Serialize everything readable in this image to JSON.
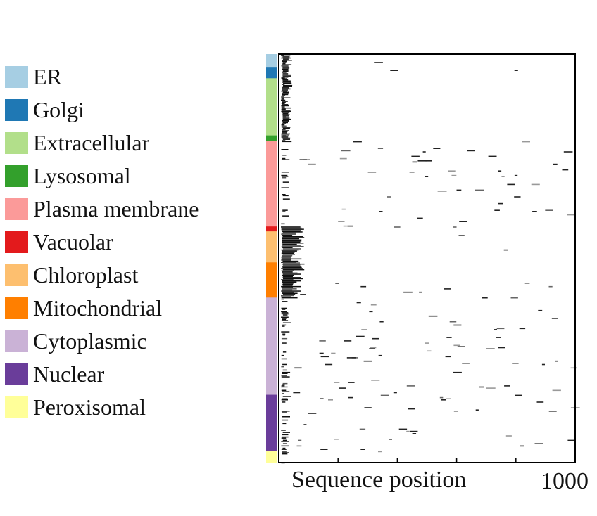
{
  "chart_data": {
    "type": "heatmap",
    "title": "",
    "xlabel": "Sequence position",
    "ylabel": "",
    "xlim": [
      0,
      1000
    ],
    "x_tick_labels": [
      {
        "value": 1000,
        "label": "1000"
      }
    ],
    "x_ticks": [
      200,
      400,
      600,
      800
    ],
    "grid": false,
    "legend_position": "left",
    "legend": [
      {
        "name": "ER",
        "color": "#a6cee3",
        "row_fraction": 0.033
      },
      {
        "name": "Golgi",
        "color": "#1f78b4",
        "row_fraction": 0.026
      },
      {
        "name": "Extracellular",
        "color": "#b2df8a",
        "row_fraction": 0.14
      },
      {
        "name": "Lysosomal",
        "color": "#33a02c",
        "row_fraction": 0.014
      },
      {
        "name": "Plasma membrane",
        "color": "#fb9a99",
        "row_fraction": 0.209
      },
      {
        "name": "Vacuolar",
        "color": "#e31a1c",
        "row_fraction": 0.012
      },
      {
        "name": "Chloroplast",
        "color": "#fdbf6f",
        "row_fraction": 0.076
      },
      {
        "name": "Mitochondrial",
        "color": "#ff7f00",
        "row_fraction": 0.086
      },
      {
        "name": "Cytoplasmic",
        "color": "#cab2d6",
        "row_fraction": 0.238
      },
      {
        "name": "Nuclear",
        "color": "#6a3d9a",
        "row_fraction": 0.138
      },
      {
        "name": "Peroxisomal",
        "color": "#ffff99",
        "row_fraction": 0.028
      }
    ],
    "cell_value_range": [
      0,
      1
    ],
    "cell_colors": [
      "#ffffff",
      "#000000"
    ]
  }
}
